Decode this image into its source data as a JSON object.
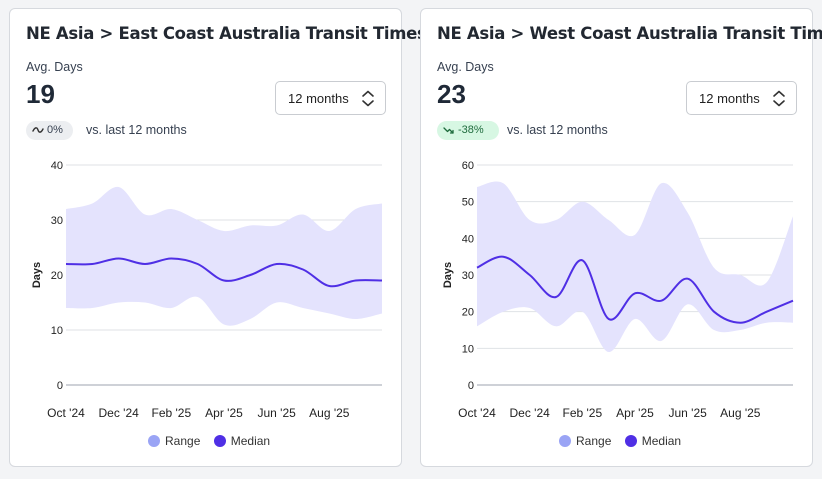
{
  "cards": [
    {
      "title": "NE Asia > East Coast Australia Transit Times",
      "metric_label": "Avg. Days",
      "metric_value": "19",
      "period_select": "12 months",
      "trend": {
        "value": "0%",
        "direction": "flat",
        "icon": "tilde-icon"
      },
      "comparison_text": "vs. last 12 months",
      "chart_data": {
        "type": "area",
        "ylabel": "Days",
        "ylim": [
          0,
          40
        ],
        "yticks": [
          0,
          10,
          20,
          30,
          40
        ],
        "x": [
          "Oct '24",
          "Nov '24",
          "Dec '24",
          "Jan '25",
          "Feb '25",
          "Mar '25",
          "Apr '25",
          "May '25",
          "Jun '25",
          "Jul '25",
          "Aug '25",
          "Sep '25",
          "Oct '25"
        ],
        "xtick_labels": [
          "Oct '24",
          "Dec '24",
          "Feb '25",
          "Apr '25",
          "Jun '25",
          "Aug '25"
        ],
        "series": [
          {
            "name": "Median",
            "values": [
              22,
              22,
              23,
              22,
              23,
              22,
              19,
              20,
              22,
              21,
              18,
              19,
              19
            ]
          },
          {
            "name": "Range",
            "low": [
              14,
              14,
              15,
              15,
              14,
              16,
              11,
              12,
              15,
              14,
              13,
              12,
              13
            ],
            "high": [
              32,
              33,
              36,
              31,
              32,
              30,
              28,
              29,
              29,
              31,
              28,
              32,
              33
            ]
          }
        ]
      },
      "legend": [
        {
          "label": "Range",
          "color": "#9aa4f5"
        },
        {
          "label": "Median",
          "color": "#4f2fe5"
        }
      ]
    },
    {
      "title": "NE Asia > West Coast Australia Transit Times",
      "metric_label": "Avg. Days",
      "metric_value": "23",
      "period_select": "12 months",
      "trend": {
        "value": "-38%",
        "direction": "down",
        "icon": "trend-down-icon"
      },
      "comparison_text": "vs. last 12 months",
      "chart_data": {
        "type": "area",
        "ylabel": "Days",
        "ylim": [
          0,
          60
        ],
        "yticks": [
          0,
          10,
          20,
          30,
          40,
          50,
          60
        ],
        "x": [
          "Oct '24",
          "Nov '24",
          "Dec '24",
          "Jan '25",
          "Feb '25",
          "Mar '25",
          "Apr '25",
          "May '25",
          "Jun '25",
          "Jul '25",
          "Aug '25",
          "Sep '25",
          "Oct '25"
        ],
        "xtick_labels": [
          "Oct '24",
          "Dec '24",
          "Feb '25",
          "Apr '25",
          "Jun '25",
          "Aug '25"
        ],
        "series": [
          {
            "name": "Median",
            "values": [
              32,
              35,
              30,
              24,
              34,
              18,
              25,
              23,
              29,
              20,
              17,
              20,
              23
            ]
          },
          {
            "name": "Range",
            "low": [
              16,
              20,
              21,
              16,
              20,
              9,
              18,
              12,
              22,
              15,
              15,
              17,
              17
            ],
            "high": [
              54,
              55,
              45,
              45,
              50,
              45,
              41,
              55,
              47,
              32,
              30,
              28,
              46
            ]
          }
        ]
      },
      "legend": [
        {
          "label": "Range",
          "color": "#9aa4f5"
        },
        {
          "label": "Median",
          "color": "#4f2fe5"
        }
      ]
    }
  ],
  "colors": {
    "median_line": "#4f2fe5",
    "range_fill": "#e4e3fd",
    "grid": "#dfe2e6",
    "badge_good_bg": "#d7f7e3",
    "badge_good_text": "#1f6b3d",
    "badge_neutral_bg": "#eceef1"
  }
}
